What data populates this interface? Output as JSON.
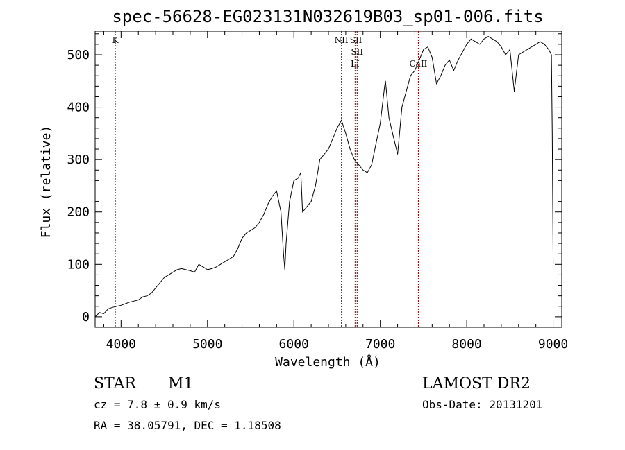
{
  "chart_data": {
    "type": "line",
    "title": "spec-56628-EG023131N032619B03_sp01-006.fits",
    "xlabel": "Wavelength (Å)",
    "ylabel": "Flux (relative)",
    "xlim": [
      3700,
      9100
    ],
    "ylim": [
      -20,
      545
    ],
    "xticks": [
      4000,
      5000,
      6000,
      7000,
      8000,
      9000
    ],
    "yticks": [
      0,
      100,
      200,
      300,
      400,
      500
    ],
    "grid": false,
    "series": [
      {
        "x": [
          3700,
          3750,
          3800,
          3850,
          3900,
          3950,
          4000,
          4050,
          4100,
          4150,
          4200,
          4250,
          4300,
          4350,
          4400,
          4450,
          4500,
          4550,
          4600,
          4650,
          4700,
          4750,
          4800,
          4850,
          4900,
          4950,
          5000,
          5050,
          5100,
          5150,
          5200,
          5250,
          5300,
          5350,
          5400,
          5450,
          5500,
          5550,
          5600,
          5650,
          5700,
          5750,
          5800,
          5850,
          5880,
          5895,
          5910,
          5950,
          6000,
          6050,
          6080,
          6100,
          6150,
          6200,
          6250,
          6300,
          6350,
          6400,
          6450,
          6500,
          6550,
          6600,
          6650,
          6700,
          6750,
          6800,
          6850,
          6900,
          6950,
          7000,
          7050,
          7060,
          7100,
          7150,
          7200,
          7250,
          7300,
          7350,
          7400,
          7450,
          7500,
          7550,
          7600,
          7650,
          7700,
          7750,
          7800,
          7850,
          7900,
          7950,
          8000,
          8050,
          8100,
          8150,
          8200,
          8250,
          8300,
          8350,
          8400,
          8450,
          8500,
          8550,
          8600,
          8650,
          8700,
          8750,
          8800,
          8850,
          8900,
          8950,
          8980,
          8990,
          9000
        ],
        "y": [
          0,
          8,
          6,
          15,
          18,
          20,
          22,
          25,
          28,
          30,
          32,
          38,
          40,
          45,
          55,
          65,
          75,
          80,
          85,
          90,
          92,
          90,
          88,
          85,
          100,
          95,
          90,
          92,
          95,
          100,
          105,
          110,
          115,
          130,
          150,
          160,
          165,
          170,
          180,
          195,
          215,
          230,
          240,
          200,
          120,
          90,
          140,
          220,
          260,
          265,
          275,
          200,
          210,
          220,
          250,
          300,
          310,
          320,
          340,
          360,
          375,
          350,
          320,
          300,
          290,
          280,
          275,
          290,
          330,
          370,
          440,
          450,
          380,
          345,
          310,
          400,
          430,
          460,
          470,
          490,
          510,
          515,
          495,
          445,
          460,
          480,
          490,
          470,
          490,
          505,
          520,
          530,
          525,
          520,
          530,
          535,
          530,
          525,
          515,
          500,
          510,
          430,
          500,
          505,
          510,
          515,
          520,
          525,
          520,
          510,
          500,
          350,
          100
        ]
      }
    ],
    "markers": [
      {
        "label": "K",
        "x": 3934,
        "label_lines": [
          "K"
        ]
      },
      {
        "label": "NII",
        "x": 6550,
        "label_lines": [
          "NII"
        ]
      },
      {
        "label": "SII",
        "x": 6718,
        "label_lines": [
          "SII"
        ]
      },
      {
        "label": "SII",
        "x": 6732,
        "label_lines": [
          "",
          "SII"
        ]
      },
      {
        "label": "LI",
        "x": 6708,
        "label_lines": [
          "",
          "",
          "LI"
        ]
      },
      {
        "label": "CaII",
        "x": 7440,
        "label_lines": [
          "",
          "",
          "CaII"
        ]
      }
    ],
    "marker_color": "#8b0000"
  },
  "info": {
    "class_label": "STAR",
    "subclass_label": "M1",
    "survey_label": "LAMOST DR2",
    "cz_text": "cz = 7.8 ± 0.9 km/s",
    "obs_date_text": "Obs-Date: 20131201",
    "radec_text": "RA =  38.05791, DEC =   1.18508"
  }
}
